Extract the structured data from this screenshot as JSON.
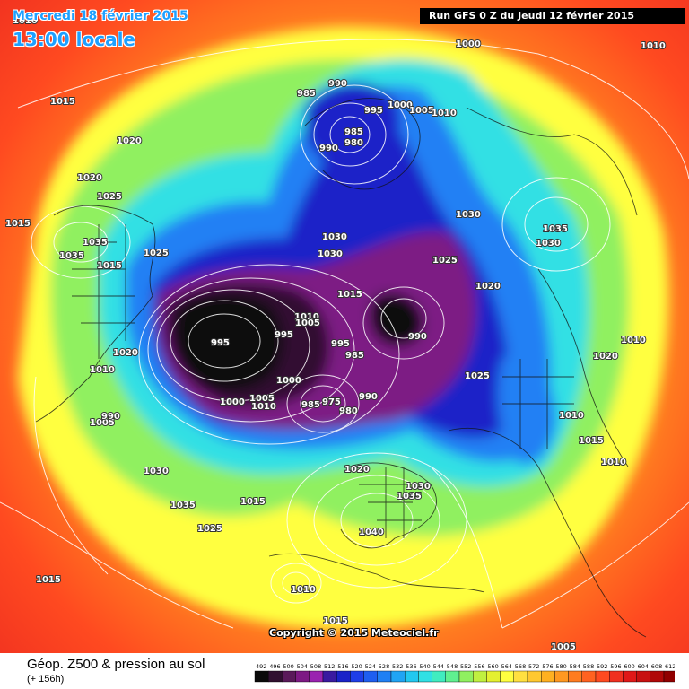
{
  "header": {
    "date": "Mercredi 18 février 2015",
    "time": "13:00 locale",
    "run_info": "Run GFS 0 Z du Jeudi 12 février 2015"
  },
  "footer": {
    "title": "Géop. Z500 & pression au sol",
    "subtitle": "(+ 156h)",
    "copyright": "Copyright © 2015 Meteociel.fr"
  },
  "colorbar": {
    "ticks": [
      492,
      496,
      500,
      504,
      508,
      512,
      516,
      520,
      524,
      528,
      532,
      536,
      540,
      544,
      548,
      552,
      556,
      560,
      564,
      568,
      572,
      576,
      580,
      584,
      588,
      592,
      596,
      600,
      604,
      608,
      612
    ],
    "colors": [
      "#0a0a0a",
      "#301030",
      "#5a1a5a",
      "#7d1a84",
      "#9a22b0",
      "#3a1aa0",
      "#1a22c8",
      "#1e3ee8",
      "#1e5ef0",
      "#2080f4",
      "#20a4f4",
      "#22c8f0",
      "#30e0e4",
      "#40ecc0",
      "#60f090",
      "#90f060",
      "#c0f040",
      "#e4f030",
      "#ffff40",
      "#ffe040",
      "#ffc830",
      "#ffb020",
      "#ff9820",
      "#ff7c20",
      "#ff6220",
      "#ff4a20",
      "#f03020",
      "#e01818",
      "#c81010",
      "#b00808",
      "#900000"
    ]
  },
  "map_labels": [
    {
      "text": "1010"
    },
    {
      "text": "1000"
    },
    {
      "text": "1010"
    },
    {
      "text": "990"
    },
    {
      "text": "985"
    },
    {
      "text": "995"
    },
    {
      "text": "1000"
    },
    {
      "text": "1005"
    },
    {
      "text": "1010"
    },
    {
      "text": "985"
    },
    {
      "text": "980"
    },
    {
      "text": "990"
    },
    {
      "text": "1015"
    },
    {
      "text": "1020"
    },
    {
      "text": "1020"
    },
    {
      "text": "1025"
    },
    {
      "text": "1015"
    },
    {
      "text": "1030"
    },
    {
      "text": "1035"
    },
    {
      "text": "1030"
    },
    {
      "text": "1035"
    },
    {
      "text": "1015"
    },
    {
      "text": "1025"
    },
    {
      "text": "1030"
    },
    {
      "text": "1025"
    },
    {
      "text": "1035"
    },
    {
      "text": "1030"
    },
    {
      "text": "1020"
    },
    {
      "text": "1015"
    },
    {
      "text": "1010"
    },
    {
      "text": "1005"
    },
    {
      "text": "995"
    },
    {
      "text": "995"
    },
    {
      "text": "995"
    },
    {
      "text": "985"
    },
    {
      "text": "990"
    },
    {
      "text": "1000"
    },
    {
      "text": "1000"
    },
    {
      "text": "1005"
    },
    {
      "text": "1010"
    },
    {
      "text": "985"
    },
    {
      "text": "975"
    },
    {
      "text": "980"
    },
    {
      "text": "990"
    },
    {
      "text": "1020"
    },
    {
      "text": "1010"
    },
    {
      "text": "1005"
    },
    {
      "text": "990"
    },
    {
      "text": "1025"
    },
    {
      "text": "1020"
    },
    {
      "text": "1010"
    },
    {
      "text": "1010"
    },
    {
      "text": "1015"
    },
    {
      "text": "1010"
    },
    {
      "text": "1030"
    },
    {
      "text": "1035"
    },
    {
      "text": "1015"
    },
    {
      "text": "1025"
    },
    {
      "text": "1020"
    },
    {
      "text": "1030"
    },
    {
      "text": "1035"
    },
    {
      "text": "1040"
    },
    {
      "text": "1015"
    },
    {
      "text": "1010"
    },
    {
      "text": "1015"
    },
    {
      "text": "1005"
    }
  ]
}
